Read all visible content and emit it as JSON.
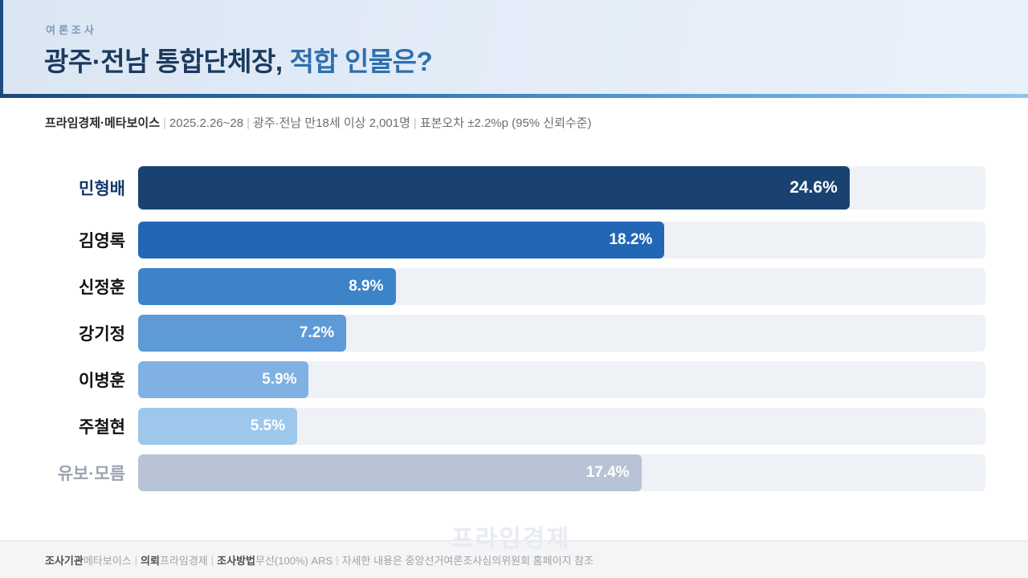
{
  "header": {
    "eyebrow": "여론조사",
    "title_main": "광주·전남 통합단체장,",
    "title_accent": "적합 인물은?"
  },
  "source_line": {
    "segments": [
      {
        "text": "프라임경제·메타보이스",
        "style": "bold"
      },
      {
        "text": "|",
        "style": "sep"
      },
      {
        "text": "2025.2.26~28",
        "style": "normal"
      },
      {
        "text": "|",
        "style": "sep"
      },
      {
        "text": "광주·전남 만18세 이상 2,001명",
        "style": "normal"
      },
      {
        "text": "|",
        "style": "sep"
      },
      {
        "text": "표본오차 ±2.2%p (95% 신뢰수준)",
        "style": "normal"
      }
    ]
  },
  "chart_data": {
    "type": "bar",
    "orientation": "horizontal",
    "title": "광주·전남 통합단체장, 적합 인물은?",
    "categories": [
      "민형배",
      "김영록",
      "신정훈",
      "강기정",
      "이병훈",
      "주철현",
      "유보·모름"
    ],
    "values": [
      24.6,
      18.2,
      8.9,
      7.2,
      5.9,
      5.5,
      17.4
    ],
    "value_labels": [
      "24.6%",
      "18.2%",
      "8.9%",
      "7.2%",
      "5.9%",
      "5.5%",
      "17.4%"
    ],
    "axis_max": 29.3,
    "grid": false,
    "legend": false,
    "bar_colors": [
      "#1a4270",
      "#2267b5",
      "#3d83c8",
      "#5e9ad7",
      "#80b1e2",
      "#9ec7ec",
      "#b8c4d5"
    ],
    "label_colors": [
      "#15396b",
      "#121212",
      "#121212",
      "#121212",
      "#121212",
      "#121212",
      "#9aa4af"
    ],
    "track_color": "#eef1f6",
    "separator_after_index": 5,
    "emphasized_row_index": 0
  },
  "watermark": "프라임경제",
  "footer": {
    "segments": [
      {
        "text": "조사기관",
        "style": "bold"
      },
      {
        "text": " 메타보이스",
        "style": "normal"
      },
      {
        "text": "|",
        "style": "sep"
      },
      {
        "text": "의뢰",
        "style": "bold"
      },
      {
        "text": " 프라임경제",
        "style": "normal"
      },
      {
        "text": "|",
        "style": "sep"
      },
      {
        "text": "조사방법",
        "style": "bold"
      },
      {
        "text": " 무선(100%) ARS",
        "style": "normal"
      },
      {
        "text": "|",
        "style": "sep"
      },
      {
        "text": "자세한 내용은 중앙선거여론조사심의위원회 홈페이지 참조",
        "style": "normal"
      }
    ]
  }
}
